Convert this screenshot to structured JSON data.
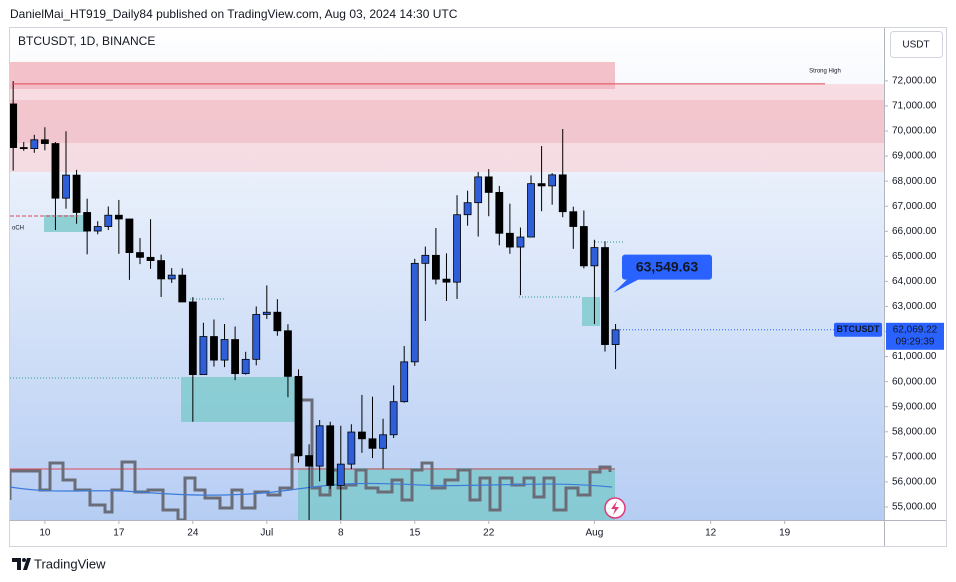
{
  "header": {
    "publisher": "DanielMai_HT919_Daily84 published on TradingView.com, Aug 03, 2024 14:30 UTC",
    "currency": "USDT",
    "footer": "TradingView"
  },
  "chart_data": {
    "type": "candlestick",
    "title": "BTCUSDT, 1D, BINANCE",
    "x": [
      0,
      1,
      2,
      3,
      4,
      5,
      6,
      7,
      8,
      9,
      10,
      11,
      12,
      13,
      14,
      15,
      16,
      17,
      18,
      19,
      20,
      21,
      22,
      23,
      24,
      25,
      26,
      27,
      28,
      29,
      30,
      31,
      32,
      33,
      34,
      35,
      36,
      37,
      38,
      39,
      40,
      41,
      42,
      43,
      44,
      45,
      46,
      47,
      48,
      49,
      50,
      51,
      52,
      53,
      54,
      55,
      56,
      57
    ],
    "open": [
      71080,
      69340,
      69300,
      69650,
      69500,
      67320,
      68240,
      66750,
      66010,
      66190,
      66640,
      66490,
      65150,
      64960,
      64830,
      64100,
      64250,
      63180,
      60280,
      61800,
      60860,
      61680,
      60320,
      60890,
      62680,
      62770,
      62030,
      60210,
      57050,
      56630,
      58240,
      55860,
      56710,
      57990,
      57720,
      57340,
      57880,
      59200,
      60790,
      64720,
      65040,
      64090,
      63970,
      66660,
      67140,
      68170,
      67550,
      65920,
      65370,
      65770,
      67900,
      67810,
      68250,
      66780,
      66190,
      64620,
      65350,
      61480
    ],
    "high": [
      71990,
      69560,
      69850,
      70150,
      69560,
      69990,
      68450,
      67300,
      66400,
      66990,
      67250,
      66490,
      65730,
      66480,
      65070,
      64530,
      64520,
      63370,
      62350,
      62480,
      62300,
      62200,
      61190,
      63000,
      63840,
      63290,
      62290,
      60490,
      57500,
      58470,
      58400,
      58240,
      58300,
      59470,
      59400,
      58520,
      59850,
      61420,
      64900,
      65390,
      66130,
      65120,
      67440,
      67620,
      68370,
      68480,
      67810,
      67100,
      66150,
      68230,
      69400,
      68320,
      70080,
      66980,
      66830,
      65660,
      65600,
      62300
    ],
    "low": [
      68420,
      69210,
      69130,
      69230,
      66050,
      66900,
      66300,
      65080,
      65880,
      66050,
      65100,
      64060,
      64690,
      64500,
      63380,
      63940,
      63170,
      58400,
      60270,
      60600,
      60580,
      60060,
      60280,
      60650,
      62500,
      61830,
      59380,
      56770,
      53490,
      56020,
      55720,
      54260,
      56510,
      57160,
      56950,
      56530,
      57750,
      59160,
      60630,
      62420,
      63880,
      63220,
      63300,
      66220,
      65790,
      66600,
      65440,
      65100,
      63450,
      65760,
      66800,
      67060,
      66560,
      65300,
      64520,
      62300,
      61200,
      60500
    ],
    "close": [
      69340,
      69300,
      69650,
      69500,
      67320,
      68240,
      66750,
      66010,
      66190,
      66640,
      66490,
      65150,
      64960,
      64830,
      64100,
      64250,
      63180,
      60280,
      61800,
      60860,
      61680,
      60320,
      60890,
      62680,
      62770,
      62030,
      60210,
      57050,
      56630,
      58240,
      55860,
      56710,
      57990,
      57720,
      57340,
      57880,
      59200,
      60790,
      64720,
      65040,
      64090,
      63970,
      66660,
      67140,
      68170,
      67550,
      65920,
      65370,
      65770,
      67900,
      67810,
      68250,
      66780,
      66190,
      64620,
      65350,
      61480,
      62069.22
    ],
    "up_color": "#2f5fd8",
    "down_color": "#000000",
    "xlim": [
      -0.3,
      82.4
    ],
    "xticks": [
      {
        "value": 3,
        "label": "10"
      },
      {
        "value": 10,
        "label": "17"
      },
      {
        "value": 17,
        "label": "24"
      },
      {
        "value": 24,
        "label": "Jul"
      },
      {
        "value": 31,
        "label": "8"
      },
      {
        "value": 38,
        "label": "15"
      },
      {
        "value": 45,
        "label": "22"
      },
      {
        "value": 55,
        "label": "Aug"
      },
      {
        "value": 66,
        "label": "12"
      },
      {
        "value": 73,
        "label": "19"
      }
    ],
    "ylim": [
      54480,
      74110
    ],
    "yticks": [
      {
        "value": 55000,
        "label": "55,000.00"
      },
      {
        "value": 56000,
        "label": "56,000.00"
      },
      {
        "value": 57000,
        "label": "57,000.00"
      },
      {
        "value": 58000,
        "label": "58,000.00"
      },
      {
        "value": 59000,
        "label": "59,000.00"
      },
      {
        "value": 60000,
        "label": "60,000.00"
      },
      {
        "value": 61000,
        "label": "61,000.00"
      },
      {
        "value": 62000,
        "label": "62,000.00"
      },
      {
        "value": 63000,
        "label": "63,000.00"
      },
      {
        "value": 64000,
        "label": "64,000.00"
      },
      {
        "value": 65000,
        "label": "65,000.00"
      },
      {
        "value": 66000,
        "label": "66,000.00"
      },
      {
        "value": 67000,
        "label": "67,000.00"
      },
      {
        "value": 68000,
        "label": "68,000.00"
      },
      {
        "value": 69000,
        "label": "69,000.00"
      },
      {
        "value": 70000,
        "label": "70,000.00"
      },
      {
        "value": 71000,
        "label": "71,000.00"
      },
      {
        "value": 72000,
        "label": "72,000.00"
      }
    ],
    "grid": false,
    "price_line": {
      "name": "BTCUSDT",
      "value": 62069.22,
      "value_label": "62,069.22",
      "countdown": "09:29:39",
      "color": "#2962ff"
    },
    "callout": {
      "value": 63549.63,
      "value_label": "63,549.63",
      "color": "#2962ff"
    },
    "levels": [
      {
        "text": "Strong High",
        "value": 71880,
        "color": "#e04858"
      },
      {
        "text": "oCH",
        "value": 66610,
        "color": "#e04858"
      }
    ]
  }
}
